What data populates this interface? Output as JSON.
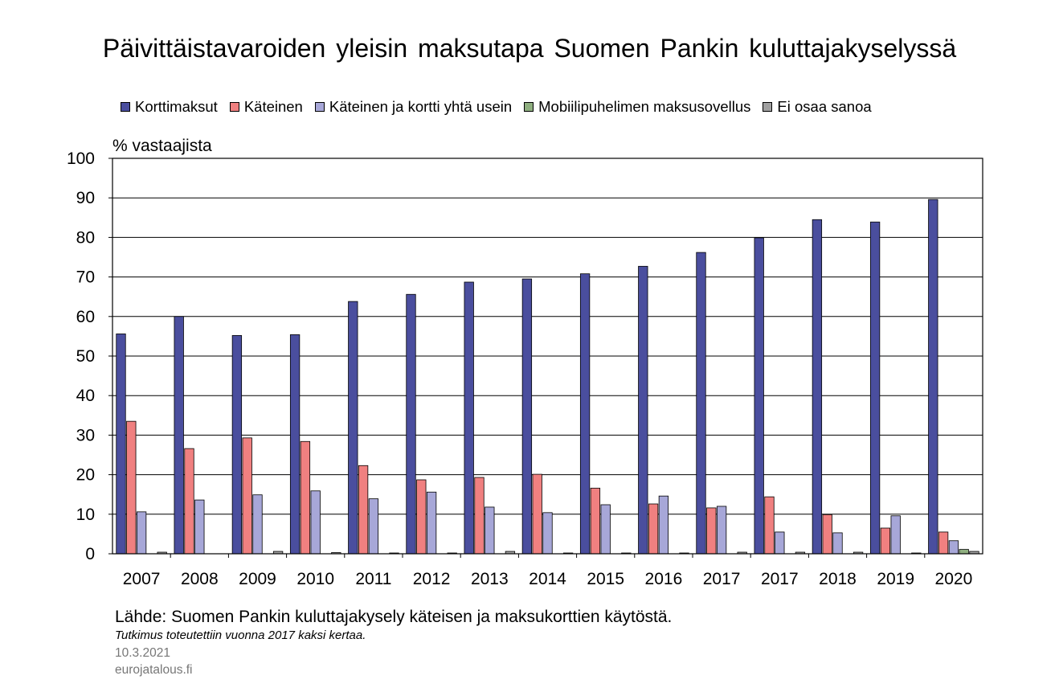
{
  "chart_data": {
    "type": "bar",
    "title": "Päivittäistavaroiden yleisin maksutapa Suomen Pankin kuluttajakyselyssä",
    "ylabel": "% vastaajista",
    "xlabel": "",
    "ylim": [
      0,
      100
    ],
    "yticks": [
      0,
      10,
      20,
      30,
      40,
      50,
      60,
      70,
      80,
      90,
      100
    ],
    "grid": true,
    "legend_position": "top",
    "categories": [
      "2007",
      "2008",
      "2009",
      "2010",
      "2011",
      "2012",
      "2013",
      "2014",
      "2015",
      "2016",
      "2017",
      "2017",
      "2018",
      "2019",
      "2020"
    ],
    "series": [
      {
        "name": "Korttimaksut",
        "color": "#4a4e9e",
        "values": [
          55.6,
          60.0,
          55.2,
          55.4,
          63.8,
          65.6,
          68.7,
          69.5,
          70.8,
          72.7,
          76.2,
          79.9,
          84.5,
          83.9,
          89.6
        ]
      },
      {
        "name": "Käteinen",
        "color": "#f08080",
        "values": [
          33.5,
          26.6,
          29.3,
          28.4,
          22.3,
          18.7,
          19.3,
          20.1,
          16.6,
          12.6,
          11.6,
          14.4,
          9.9,
          6.5,
          5.5
        ]
      },
      {
        "name": "Käteinen ja kortti yhtä usein",
        "color": "#a7a7d8",
        "values": [
          10.6,
          13.6,
          14.9,
          15.9,
          13.9,
          15.6,
          11.8,
          10.4,
          12.4,
          14.6,
          12.0,
          5.5,
          5.3,
          9.6,
          3.3
        ]
      },
      {
        "name": "Mobiilipuhelimen maksusovellus",
        "color": "#8faf80",
        "values": [
          0,
          0,
          0,
          0,
          0,
          0,
          0,
          0,
          0,
          0,
          0,
          0,
          0,
          0,
          1.1
        ]
      },
      {
        "name": "Ei osaa sanoa",
        "color": "#a0a0a0",
        "values": [
          0.4,
          0.0,
          0.6,
          0.3,
          0.2,
          0.2,
          0.6,
          0.2,
          0.2,
          0.2,
          0.4,
          0.4,
          0.4,
          0.2,
          0.6
        ]
      }
    ]
  },
  "footer": {
    "source": "Lähde: Suomen Pankin kuluttajakysely käteisen ja maksukorttien käytöstä.",
    "note": "Tutkimus toteutettiin vuonna 2017 kaksi kertaa.",
    "date": "10.3.2021",
    "site": "eurojatalous.fi"
  }
}
